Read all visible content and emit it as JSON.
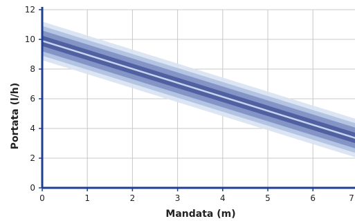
{
  "chart_data": {
    "type": "line",
    "title": "",
    "xlabel": "Mandata (m)",
    "ylabel": "Portata (l/h)",
    "xlim": [
      0,
      7
    ],
    "ylim": [
      0,
      12
    ],
    "x_ticks": [
      "0",
      "1",
      "2",
      "3",
      "4",
      "5",
      "6",
      "7"
    ],
    "y_ticks": [
      "0",
      "2",
      "4",
      "6",
      "8",
      "10",
      "12"
    ],
    "grid": true,
    "legend": "none",
    "series": [
      {
        "x": [
          0,
          7
        ],
        "y": [
          9.9,
          3.3
        ],
        "band_half_widths": [
          1.3,
          1.0,
          0.7,
          0.35
        ],
        "band_colors": [
          "#d8e2f2",
          "#aebfe0",
          "#7f8fc4",
          "#4a5a9c"
        ],
        "line_color": "#c8d4ee"
      }
    ],
    "colors": {
      "axis": "#1f3f8f",
      "grid": "#c8c8c8",
      "background": "#ffffff"
    }
  }
}
